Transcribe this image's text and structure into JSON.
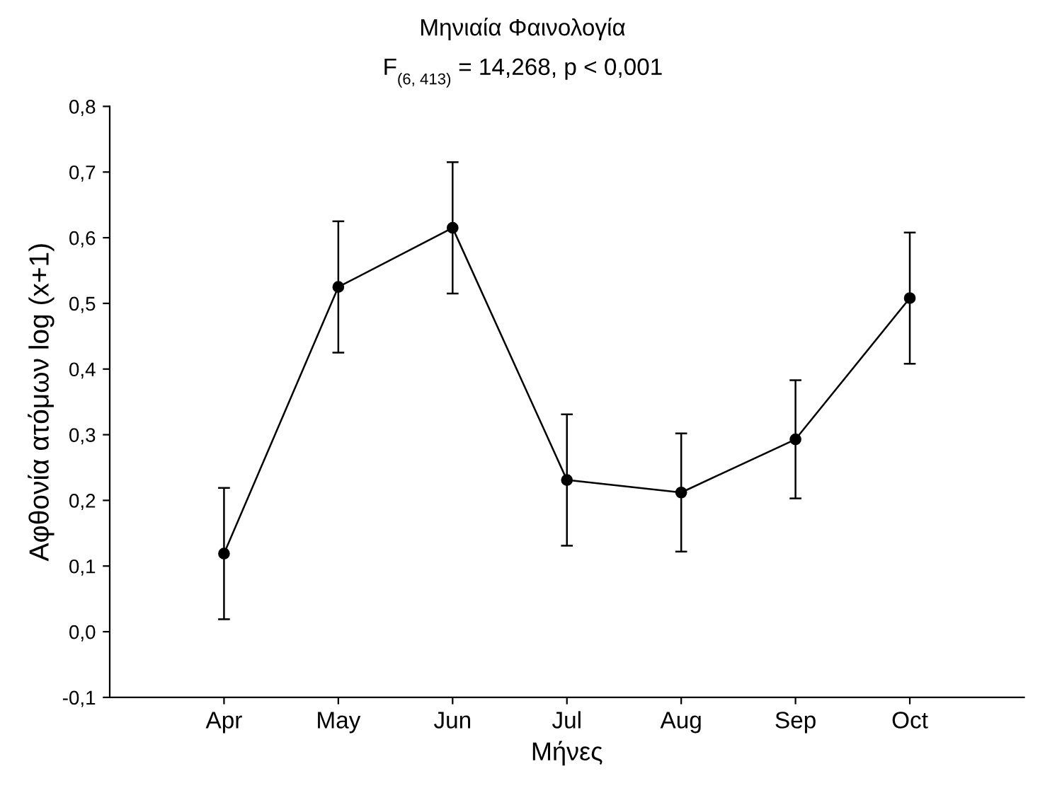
{
  "chart_data": {
    "type": "line",
    "title": "Μηνιαία Φαινολογία",
    "subtitle": "F$_{(6, 413)}$ = 14,268, p < 0,001",
    "xlabel": "Μήνες",
    "ylabel": "Αφθονία ατόμων log (x+1)",
    "categories": [
      "Apr",
      "May",
      "Jun",
      "Jul",
      "Aug",
      "Sep",
      "Oct"
    ],
    "series": [
      {
        "color": "#000000",
        "values": [
          0.119,
          0.525,
          0.615,
          0.231,
          0.212,
          0.293,
          0.508
        ],
        "errors": [
          0.1,
          0.1,
          0.1,
          0.1,
          0.09,
          0.09,
          0.1
        ]
      }
    ],
    "ylim": [
      -0.1,
      0.8
    ],
    "yticks": [
      {
        "value": -0.1,
        "label": "-0,1"
      },
      {
        "value": 0.0,
        "label": "0,0"
      },
      {
        "value": 0.1,
        "label": "0,1"
      },
      {
        "value": 0.2,
        "label": "0,2"
      },
      {
        "value": 0.3,
        "label": "0,3"
      },
      {
        "value": 0.4,
        "label": "0,4"
      },
      {
        "value": 0.5,
        "label": "0,5"
      },
      {
        "value": 0.6,
        "label": "0,6"
      },
      {
        "value": 0.7,
        "label": "0,7"
      },
      {
        "value": 0.8,
        "label": "0,8"
      }
    ],
    "marker": "circle",
    "line_style": "solid",
    "grid": false
  }
}
